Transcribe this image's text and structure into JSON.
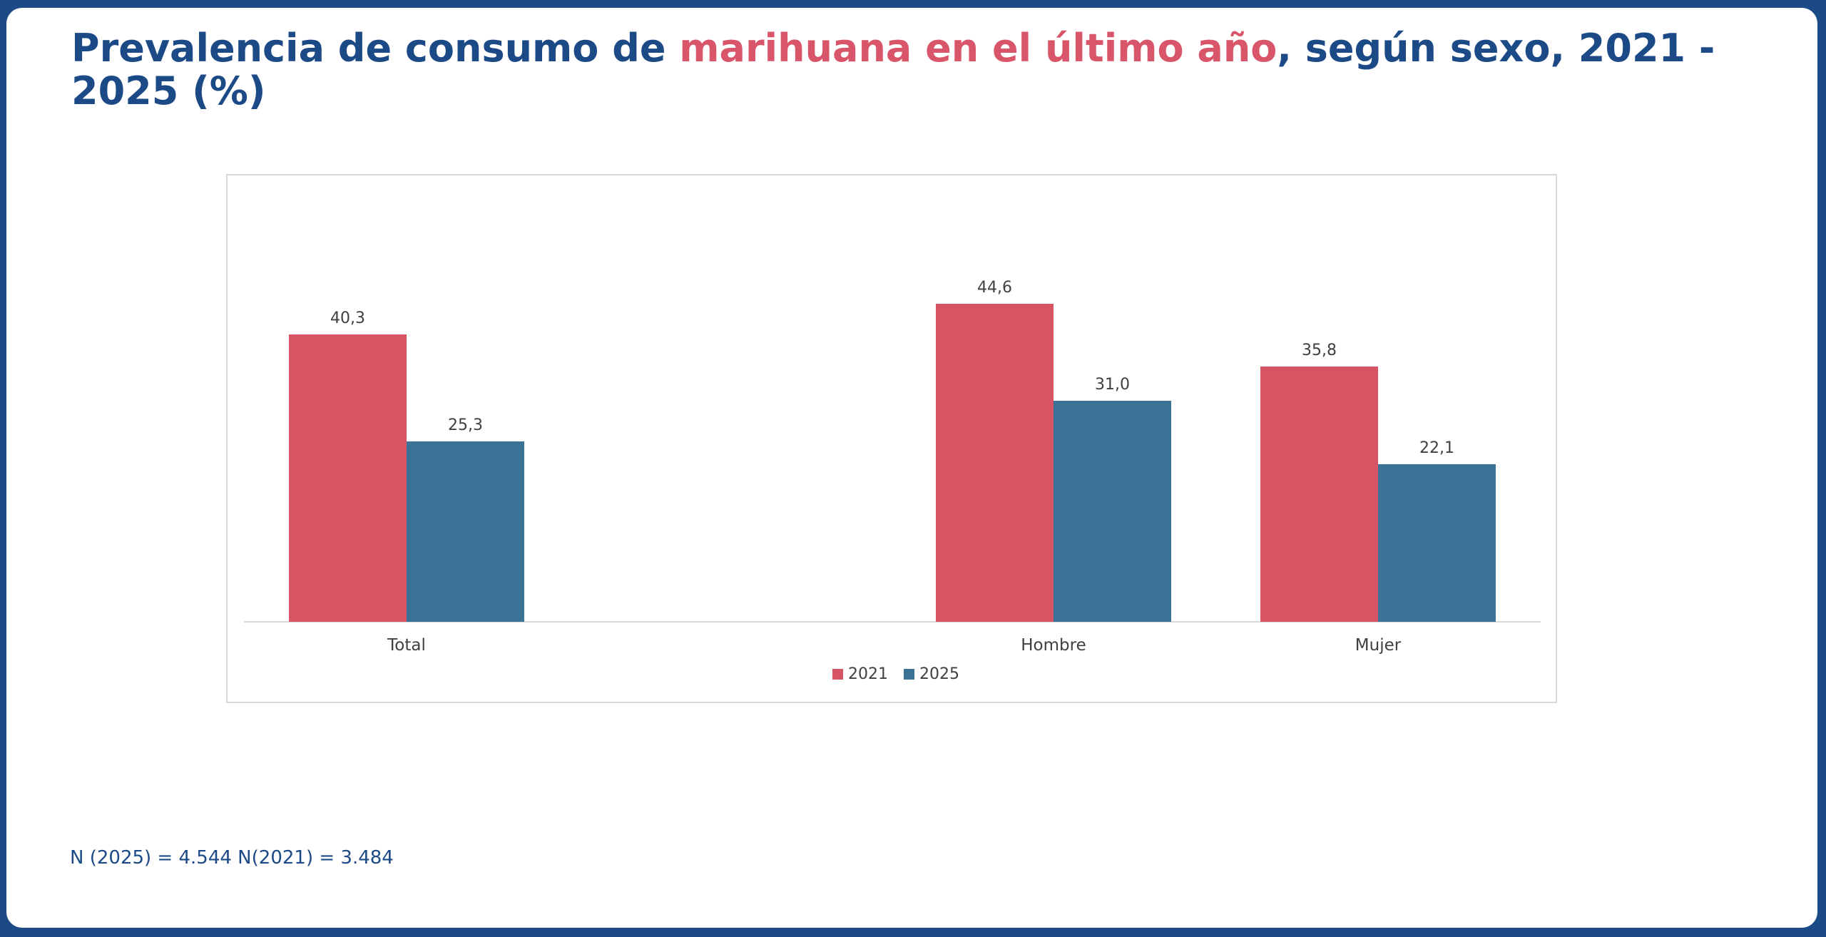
{
  "title": {
    "part1": "Prevalencia de consumo de ",
    "highlight": "marihuana en el último año",
    "part2": ", según sexo, 2021 - 2025 (%)"
  },
  "colors": {
    "frame": "#1c4a87",
    "title": "#1c4a87",
    "highlight": "#d9566a"
  },
  "chart_data": {
    "type": "bar",
    "categories": [
      "Total",
      "Hombre",
      "Mujer"
    ],
    "series": [
      {
        "name": "2021",
        "values": [
          40.3,
          44.6,
          35.8
        ],
        "labels": [
          "40,3",
          "44,6",
          "35,8"
        ],
        "color": "#d65463"
      },
      {
        "name": "2025",
        "values": [
          25.3,
          31.0,
          22.1
        ],
        "labels": [
          "25,3",
          "31,0",
          "22,1"
        ],
        "color": "#3a7396"
      }
    ],
    "title": "",
    "xlabel": "",
    "ylabel": "",
    "ylim": [
      0,
      60
    ],
    "grid": false,
    "legend": "bottom-center"
  },
  "footnote": "N (2025) = 4.544 N(2021) = 3.484"
}
